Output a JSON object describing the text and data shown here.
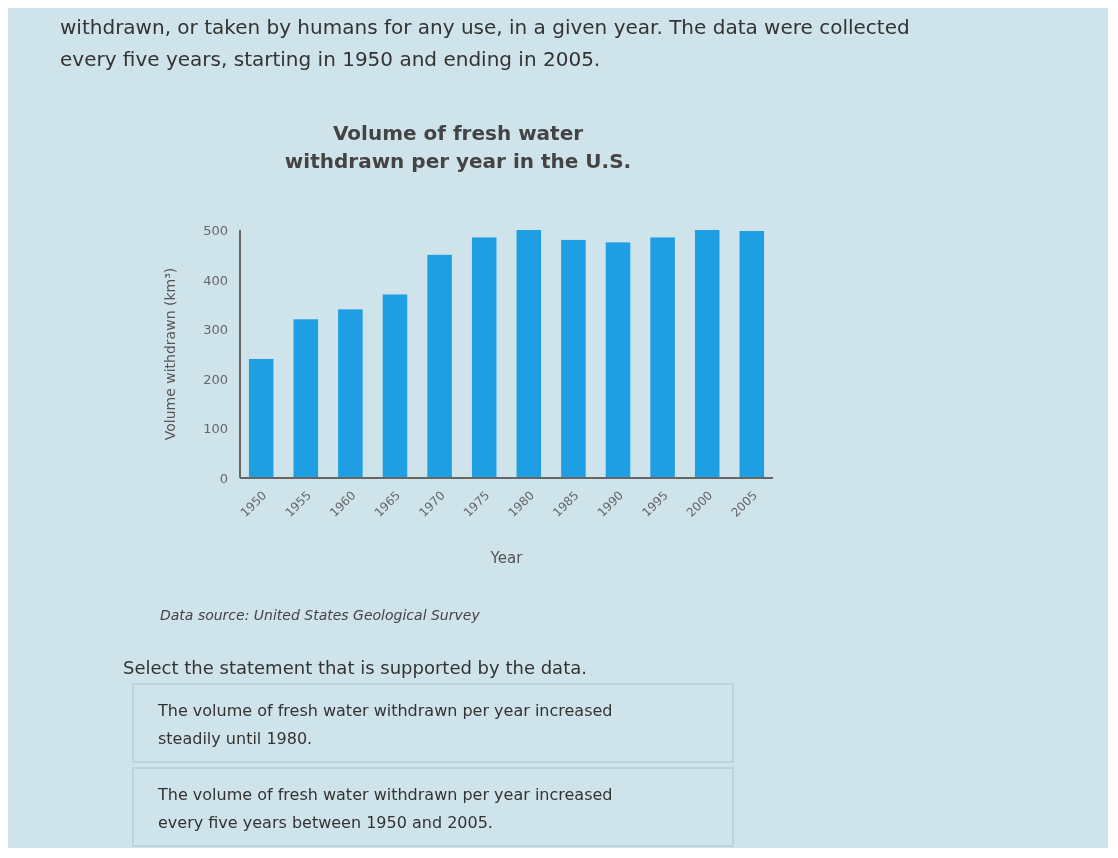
{
  "chart_data": {
    "type": "bar",
    "title": "Volume of fresh water withdrawn per year in the U.S.",
    "xlabel": "Year",
    "ylabel": "Volume withdrawn (km³)",
    "categories": [
      "1950",
      "1955",
      "1960",
      "1965",
      "1970",
      "1975",
      "1980",
      "1985",
      "1990",
      "1995",
      "2000",
      "2005"
    ],
    "values": [
      240,
      320,
      340,
      370,
      450,
      485,
      500,
      480,
      475,
      485,
      500,
      498
    ],
    "color": "#1e9fe4",
    "ylim": [
      0,
      500
    ],
    "yticks": [
      0,
      100,
      200,
      300,
      400,
      500
    ],
    "grid": false,
    "annotations": [
      "withdrawn, or taken by humans for any use, in a given year. The data were collected every five years, starting in 1950 and ending in 2005.",
      "Data source: United States Geological Survey",
      "Select the statement that is supported by the data.",
      "The volume of fresh water withdrawn per year increased steadily until 1980.",
      "The volume of fresh water withdrawn per year increased every five years between 1950 and 2005."
    ]
  }
}
